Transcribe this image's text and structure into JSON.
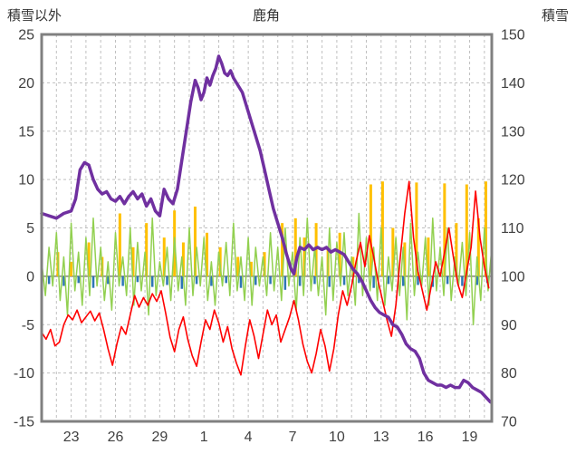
{
  "header": {
    "left_axis_title": "積雪以外",
    "title": "鹿角",
    "right_axis_title": "積雪"
  },
  "chart_data": {
    "type": "line",
    "title": "鹿角",
    "grid": true,
    "legend": "none",
    "colors": {
      "frame": "#808080",
      "grid": "#bfbfbf",
      "zero_line": "#808080",
      "text": "#404040",
      "purple": "#7030A0",
      "red": "#FF0000",
      "green": "#92D050",
      "orange": "#FFC000",
      "blue": "#2E75B6"
    },
    "x_axis": {
      "labels": [
        "23",
        "26",
        "29",
        "1",
        "4",
        "7",
        "10",
        "13",
        "16",
        "19"
      ],
      "label_days": [
        2,
        5,
        8,
        11,
        14,
        17,
        20,
        23,
        26,
        29
      ],
      "day_min": 0,
      "day_max": 30.5,
      "grid_step": 1
    },
    "left_axis": {
      "title": "積雪以外",
      "min": -15,
      "max": 25,
      "ticks": [
        25,
        20,
        15,
        10,
        5,
        0,
        -5,
        -10,
        -15
      ]
    },
    "right_axis": {
      "title": "積雪",
      "min": 70,
      "max": 150,
      "ticks": [
        150,
        140,
        130,
        120,
        110,
        100,
        90,
        80,
        70
      ]
    },
    "series": [
      {
        "name": "orange-bars",
        "type": "bar",
        "axis": "left",
        "color": "#FFC000",
        "width": 3,
        "bars": [
          [
            1.1,
            2.5
          ],
          [
            2,
            1.5
          ],
          [
            3.2,
            3.5
          ],
          [
            4.1,
            2
          ],
          [
            5.3,
            6.5
          ],
          [
            6.2,
            3
          ],
          [
            7.1,
            5.5
          ],
          [
            8.3,
            4
          ],
          [
            9,
            6.8
          ],
          [
            9.6,
            3.5
          ],
          [
            10.4,
            7.2
          ],
          [
            11.2,
            4.5
          ],
          [
            12.1,
            3
          ],
          [
            13.3,
            2
          ],
          [
            14.2,
            1.5
          ],
          [
            15.1,
            2.5
          ],
          [
            16.3,
            5.5
          ],
          [
            17.2,
            6
          ],
          [
            17.8,
            4
          ],
          [
            18.6,
            5.5
          ],
          [
            19.4,
            3
          ],
          [
            20.2,
            4.5
          ],
          [
            21.1,
            2
          ],
          [
            22.3,
            9.5
          ],
          [
            23.1,
            9.8
          ],
          [
            23.8,
            5
          ],
          [
            24.6,
            3.5
          ],
          [
            25.4,
            9.7
          ],
          [
            26.2,
            4
          ],
          [
            27.3,
            9.6
          ],
          [
            28.1,
            5.5
          ],
          [
            28.8,
            9.5
          ],
          [
            29.6,
            6
          ],
          [
            30.1,
            9.8
          ]
        ]
      },
      {
        "name": "blue-bars",
        "type": "bar",
        "axis": "left",
        "color": "#2E75B6",
        "width": 2.5,
        "bars": [
          [
            0.5,
            -0.8
          ],
          [
            1.5,
            -1
          ],
          [
            2.5,
            -0.7
          ],
          [
            3.5,
            -1.2
          ],
          [
            4.5,
            -0.8
          ],
          [
            5.5,
            -1
          ],
          [
            6.5,
            -0.6
          ],
          [
            7.5,
            -1.1
          ],
          [
            8.5,
            -0.9
          ],
          [
            9.5,
            -1.3
          ],
          [
            10.5,
            -0.8
          ],
          [
            11.5,
            -1
          ],
          [
            12.5,
            -0.7
          ],
          [
            13.5,
            -1.2
          ],
          [
            14.5,
            -0.9
          ],
          [
            15.5,
            -0.8
          ],
          [
            16.5,
            -1.4
          ],
          [
            17.5,
            -1
          ],
          [
            18.5,
            -0.8
          ],
          [
            19.5,
            -1.1
          ],
          [
            20.5,
            -0.9
          ],
          [
            21.5,
            -0.7
          ],
          [
            22.5,
            -1.2
          ],
          [
            23.5,
            -0.8
          ],
          [
            24.5,
            -1
          ],
          [
            25.5,
            -0.9
          ],
          [
            26.5,
            -1.1
          ],
          [
            27.5,
            -0.8
          ],
          [
            28.5,
            -1
          ],
          [
            29.5,
            -0.9
          ],
          [
            30.2,
            -0.7
          ]
        ]
      },
      {
        "name": "green-line",
        "type": "line",
        "axis": "left",
        "color": "#92D050",
        "width": 1.5,
        "x0": 0,
        "dx": 0.25,
        "values": [
          1.5,
          -2,
          3,
          -1,
          4.5,
          -2.5,
          2,
          -4,
          5.5,
          -1.5,
          2.5,
          -3,
          4,
          -2,
          6,
          -1,
          3,
          -2.5,
          1.5,
          -3.5,
          4.5,
          -1,
          2,
          -2,
          5,
          -3,
          3.5,
          -1.5,
          2.5,
          -4,
          6,
          -2,
          1.5,
          -1,
          3,
          -2.5,
          4,
          -1.5,
          2,
          -3,
          5,
          -2,
          3,
          -1,
          4,
          -2.5,
          1.5,
          -3,
          2.5,
          -1,
          3.5,
          -2,
          5.5,
          -1.5,
          2,
          -2.5,
          4,
          -3,
          3,
          -1,
          2,
          -2,
          4.5,
          -1.5,
          3,
          -2.5,
          5,
          -1,
          2.5,
          -3.5,
          4,
          -2,
          6,
          -1.5,
          3,
          -2,
          2,
          -4,
          5,
          -2.5,
          3.5,
          -1,
          4.5,
          -2,
          2,
          -3,
          6.5,
          -2,
          4,
          -1.5,
          3,
          -2.5,
          5,
          -3,
          2,
          -1.5,
          4,
          -2,
          3,
          -4.5,
          5.5,
          -2,
          2.5,
          -1,
          4,
          -3,
          6,
          -1.5,
          3,
          -2,
          5,
          -2.5,
          2,
          -1,
          3.5,
          -2,
          4.5,
          -5,
          2,
          -2.5,
          5,
          -1.5,
          3
        ]
      },
      {
        "name": "red-line",
        "type": "line",
        "axis": "left",
        "color": "#FF0000",
        "width": 1.6,
        "x0": 0,
        "dx": 0.3,
        "values": [
          -5.8,
          -6.5,
          -5.5,
          -7.2,
          -6.8,
          -5,
          -4,
          -4.5,
          -3.5,
          -4.8,
          -4.2,
          -3.6,
          -4.6,
          -3.8,
          -5.5,
          -7.5,
          -9.2,
          -7,
          -5.2,
          -6,
          -4,
          -2,
          -3.2,
          -2.2,
          -3,
          -1.8,
          -2.6,
          -1.5,
          -3.8,
          -6.3,
          -7.8,
          -5.5,
          -4.2,
          -6.5,
          -8.2,
          -9.3,
          -6.8,
          -4.5,
          -5.5,
          -3.5,
          -4.8,
          -6.8,
          -5.2,
          -7.5,
          -9,
          -10.2,
          -7.2,
          -4.5,
          -6.2,
          -8.5,
          -6,
          -3.5,
          -5,
          -4,
          -6.8,
          -5.5,
          -4.2,
          -2.5,
          -4.5,
          -7,
          -8.8,
          -10,
          -8,
          -5.5,
          -7.2,
          -9.8,
          -7.5,
          -4,
          -1.5,
          -3,
          -1,
          1.5,
          3.5,
          1,
          4.2,
          2,
          -0.5,
          -2.5,
          -4.5,
          -6.2,
          -3,
          2,
          6.5,
          9.8,
          4,
          0.5,
          -1.5,
          -3.5,
          -1,
          1.5,
          0,
          2.5,
          5,
          2,
          -0.8,
          -2.2,
          0.5,
          3,
          8.8,
          4,
          1,
          -1.2
        ]
      },
      {
        "name": "purple-line",
        "type": "line",
        "axis": "right",
        "color": "#7030A0",
        "width": 3.5,
        "points": [
          [
            0,
            113
          ],
          [
            0.5,
            112.5
          ],
          [
            1,
            112
          ],
          [
            1.5,
            113
          ],
          [
            2,
            113.5
          ],
          [
            2.3,
            116
          ],
          [
            2.6,
            122
          ],
          [
            2.9,
            123.5
          ],
          [
            3.2,
            123
          ],
          [
            3.5,
            120
          ],
          [
            3.8,
            118
          ],
          [
            4.1,
            117
          ],
          [
            4.4,
            117.5
          ],
          [
            4.7,
            116
          ],
          [
            5,
            115.5
          ],
          [
            5.3,
            116.5
          ],
          [
            5.6,
            115
          ],
          [
            5.9,
            116.5
          ],
          [
            6.2,
            117.5
          ],
          [
            6.5,
            116
          ],
          [
            6.8,
            117
          ],
          [
            7.1,
            114.5
          ],
          [
            7.4,
            116
          ],
          [
            7.7,
            113.5
          ],
          [
            8,
            112.5
          ],
          [
            8.3,
            118
          ],
          [
            8.6,
            116
          ],
          [
            8.9,
            115
          ],
          [
            9.2,
            118
          ],
          [
            9.5,
            124
          ],
          [
            9.8,
            130
          ],
          [
            10.1,
            136
          ],
          [
            10.4,
            140.5
          ],
          [
            10.6,
            139
          ],
          [
            10.8,
            136.5
          ],
          [
            11,
            138
          ],
          [
            11.2,
            141
          ],
          [
            11.4,
            139.5
          ],
          [
            11.6,
            141.5
          ],
          [
            11.8,
            143
          ],
          [
            12,
            145.5
          ],
          [
            12.2,
            144
          ],
          [
            12.4,
            142
          ],
          [
            12.6,
            141.5
          ],
          [
            12.8,
            142.5
          ],
          [
            13,
            141
          ],
          [
            13.3,
            139.5
          ],
          [
            13.6,
            138
          ],
          [
            13.9,
            135
          ],
          [
            14.2,
            132
          ],
          [
            14.5,
            129
          ],
          [
            14.8,
            126
          ],
          [
            15.1,
            122
          ],
          [
            15.4,
            118
          ],
          [
            15.7,
            114
          ],
          [
            16,
            111
          ],
          [
            16.3,
            108
          ],
          [
            16.6,
            104.5
          ],
          [
            16.9,
            101.5
          ],
          [
            17.1,
            100.5
          ],
          [
            17.3,
            104
          ],
          [
            17.5,
            106
          ],
          [
            17.8,
            105.5
          ],
          [
            18.1,
            106.5
          ],
          [
            18.4,
            105.5
          ],
          [
            18.7,
            106
          ],
          [
            19,
            105.5
          ],
          [
            19.3,
            106
          ],
          [
            19.6,
            105
          ],
          [
            19.9,
            105.5
          ],
          [
            20.2,
            105
          ],
          [
            20.5,
            104.5
          ],
          [
            20.8,
            103
          ],
          [
            21.1,
            101.5
          ],
          [
            21.4,
            100.5
          ],
          [
            21.7,
            99
          ],
          [
            22,
            97
          ],
          [
            22.3,
            95
          ],
          [
            22.6,
            93.5
          ],
          [
            22.9,
            92.5
          ],
          [
            23.2,
            92
          ],
          [
            23.5,
            91.5
          ],
          [
            23.8,
            90
          ],
          [
            24.1,
            89.5
          ],
          [
            24.4,
            88
          ],
          [
            24.7,
            86
          ],
          [
            25,
            85
          ],
          [
            25.3,
            84.5
          ],
          [
            25.6,
            83
          ],
          [
            25.9,
            80
          ],
          [
            26.2,
            78.5
          ],
          [
            26.5,
            78
          ],
          [
            26.8,
            77.5
          ],
          [
            27.1,
            77.5
          ],
          [
            27.4,
            77
          ],
          [
            27.7,
            77.5
          ],
          [
            28,
            77
          ],
          [
            28.3,
            77
          ],
          [
            28.6,
            78.5
          ],
          [
            28.9,
            78
          ],
          [
            29.2,
            77
          ],
          [
            29.5,
            76.5
          ],
          [
            29.8,
            76
          ],
          [
            30.1,
            75
          ],
          [
            30.4,
            74
          ]
        ]
      }
    ]
  }
}
